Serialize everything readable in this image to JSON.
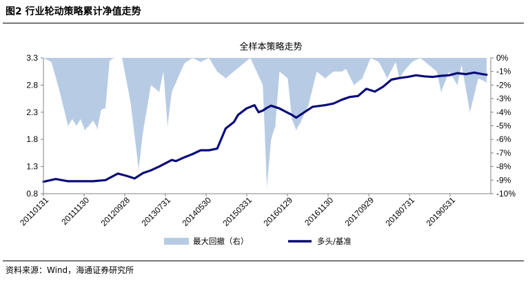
{
  "figure": {
    "title": "图2  行业轮动策略累计净值走势",
    "source": "资料来源：Wind，海通证券研究所"
  },
  "colors": {
    "line": "#0a0a78",
    "area": "#b7cbe4"
  },
  "chart_data": {
    "type": "line",
    "title": "全样本策略走势",
    "x_ticks": [
      "20110131",
      "20111130",
      "20120928",
      "20130731",
      "20140530",
      "20150331",
      "20160129",
      "20161130",
      "20170929",
      "20180731",
      "20190531"
    ],
    "y_left": {
      "ylim": [
        0.8,
        3.3
      ],
      "ticks": [
        "0.8",
        "1.3",
        "1.8",
        "2.3",
        "2.8",
        "3.3"
      ]
    },
    "y_right": {
      "ylim": [
        -10,
        0
      ],
      "ticks": [
        "0%",
        "-1%",
        "-2%",
        "-3%",
        "-4%",
        "-5%",
        "-6%",
        "-7%",
        "-8%",
        "-9%",
        "-10%"
      ],
      "unit": "%"
    },
    "legend": {
      "position": "bottom",
      "entries": [
        "最大回撤（右）",
        "多头/基准"
      ]
    },
    "series": [
      {
        "name": "多头/基准",
        "type": "line",
        "axis": "left",
        "x": [
          "2011-01",
          "2011-04",
          "2011-07",
          "2011-10",
          "2012-01",
          "2012-04",
          "2012-07",
          "2012-09",
          "2012-11",
          "2013-01",
          "2013-03",
          "2013-05",
          "2013-07",
          "2013-08",
          "2013-09",
          "2013-11",
          "2014-01",
          "2014-03",
          "2014-05",
          "2014-07",
          "2014-09",
          "2014-11",
          "2014-12",
          "2015-02",
          "2015-04",
          "2015-05",
          "2015-06",
          "2015-07",
          "2015-08",
          "2015-10",
          "2015-12",
          "2016-01",
          "2016-02",
          "2016-04",
          "2016-06",
          "2016-09",
          "2016-11",
          "2017-01",
          "2017-03",
          "2017-05",
          "2017-07",
          "2017-09",
          "2017-11",
          "2018-01",
          "2018-03",
          "2018-05",
          "2018-07",
          "2018-09",
          "2018-11",
          "2019-01",
          "2019-03",
          "2019-05",
          "2019-07",
          "2019-09",
          "2019-11",
          "2019-12"
        ],
        "values": [
          1.02,
          1.07,
          1.03,
          1.03,
          1.03,
          1.05,
          1.17,
          1.13,
          1.08,
          1.18,
          1.23,
          1.3,
          1.38,
          1.42,
          1.4,
          1.47,
          1.53,
          1.6,
          1.6,
          1.63,
          2.0,
          2.12,
          2.25,
          2.37,
          2.43,
          2.3,
          2.33,
          2.38,
          2.42,
          2.37,
          2.29,
          2.25,
          2.2,
          2.3,
          2.4,
          2.43,
          2.46,
          2.53,
          2.58,
          2.6,
          2.73,
          2.68,
          2.77,
          2.9,
          2.93,
          2.95,
          2.98,
          2.96,
          2.95,
          2.97,
          2.98,
          3.02,
          3.0,
          3.03,
          3.0,
          2.99
        ]
      },
      {
        "name": "最大回撤（右）",
        "type": "area",
        "axis": "right",
        "x": [
          "2011-01",
          "2011-03",
          "2011-05",
          "2011-07",
          "2011-08",
          "2011-09",
          "2011-10",
          "2011-11",
          "2011-12",
          "2012-01",
          "2012-02",
          "2012-03",
          "2012-04",
          "2012-05",
          "2012-06",
          "2012-08",
          "2012-10",
          "2012-12",
          "2013-01",
          "2013-03",
          "2013-05",
          "2013-06",
          "2013-07",
          "2013-08",
          "2013-09",
          "2013-11",
          "2014-01",
          "2014-03",
          "2014-05",
          "2014-07",
          "2014-09",
          "2015-03",
          "2015-06",
          "2015-07",
          "2015-08",
          "2015-09",
          "2015-10",
          "2015-12",
          "2016-01",
          "2016-02",
          "2016-03",
          "2016-05",
          "2016-07",
          "2016-09",
          "2016-11",
          "2017-01",
          "2017-02",
          "2017-04",
          "2017-06",
          "2017-08",
          "2017-10",
          "2017-12",
          "2018-02",
          "2018-03",
          "2018-04",
          "2018-06",
          "2018-08",
          "2018-10",
          "2018-12",
          "2019-01",
          "2019-03",
          "2019-05",
          "2019-06",
          "2019-08",
          "2019-10",
          "2019-12"
        ],
        "values": [
          0,
          -0.3,
          -2.5,
          -5.0,
          -4.5,
          -5.0,
          -4.5,
          -5.3,
          -5.0,
          -4.6,
          -5.2,
          -3.8,
          -3.7,
          -0.2,
          0,
          0,
          -3.2,
          -8.2,
          -5.5,
          -2.0,
          -2.5,
          -1.0,
          -5.0,
          -2.5,
          -1.8,
          -0.4,
          0,
          -0.3,
          0,
          -1.0,
          -1.5,
          0,
          -2.0,
          -9.5,
          -6.0,
          -5.0,
          -1.0,
          -1.5,
          -4.5,
          -5.3,
          -4.8,
          -3.5,
          -1.0,
          -1.5,
          -1.0,
          -1.0,
          -0.8,
          -2.0,
          -1.5,
          0,
          -0.3,
          -1.5,
          -0.3,
          -1.5,
          -1.0,
          -0.3,
          0,
          -0.5,
          -1.0,
          -2.5,
          -1.0,
          -2.0,
          -0.5,
          -4.0,
          -1.5,
          -1.8
        ]
      }
    ]
  }
}
